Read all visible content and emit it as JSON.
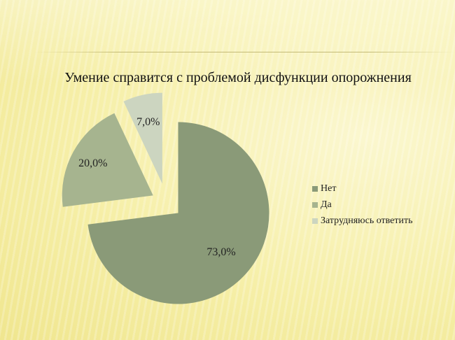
{
  "chart_data": {
    "type": "pie",
    "title": "Умение справится с проблемой дисфункции опорожнения",
    "categories": [
      "Нет",
      "Да",
      "Затрудняюсь ответить"
    ],
    "values": [
      73.0,
      20.0,
      7.0
    ],
    "data_labels": [
      "73,0%",
      "20,0%",
      "7,0%"
    ],
    "colors": [
      "#8a9a78",
      "#a6b48f",
      "#ccd5c0"
    ],
    "exploded": true,
    "legend_position": "right"
  }
}
